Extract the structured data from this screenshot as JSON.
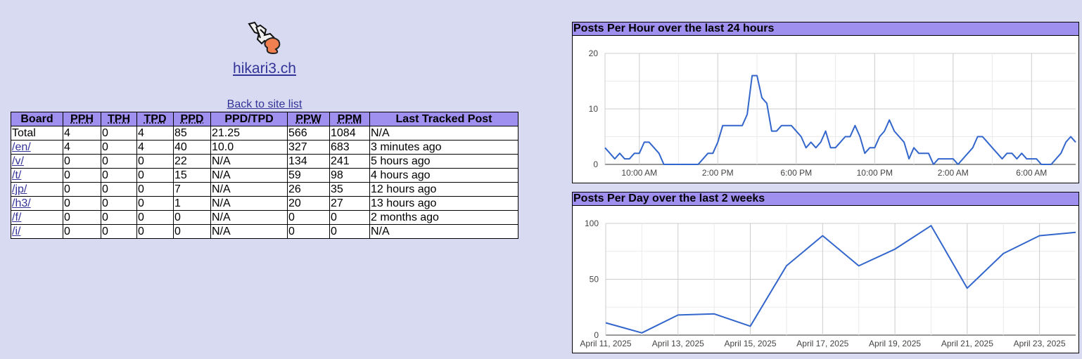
{
  "site": {
    "title": "hikari3.ch",
    "back_link": "Back to site list",
    "logo_icon": "hikari3-logo-icon"
  },
  "table": {
    "headers": [
      "Board",
      "PPH",
      "TPH",
      "TPD",
      "PPD",
      "PPD/TPD",
      "PPW",
      "PPM",
      "Last Tracked Post"
    ],
    "rows": [
      [
        "Total",
        "4",
        "0",
        "4",
        "85",
        "21.25",
        "566",
        "1084",
        "N/A"
      ],
      [
        "/en/",
        "4",
        "0",
        "4",
        "40",
        "10.0",
        "327",
        "683",
        "3 minutes ago"
      ],
      [
        "/v/",
        "0",
        "0",
        "0",
        "22",
        "N/A",
        "134",
        "241",
        "5 hours ago"
      ],
      [
        "/t/",
        "0",
        "0",
        "0",
        "15",
        "N/A",
        "59",
        "98",
        "4 hours ago"
      ],
      [
        "/jp/",
        "0",
        "0",
        "0",
        "7",
        "N/A",
        "26",
        "35",
        "12 hours ago"
      ],
      [
        "/h3/",
        "0",
        "0",
        "0",
        "1",
        "N/A",
        "20",
        "27",
        "13 hours ago"
      ],
      [
        "/f/",
        "0",
        "0",
        "0",
        "0",
        "N/A",
        "0",
        "0",
        "2 months ago"
      ],
      [
        "/i/",
        "0",
        "0",
        "0",
        "0",
        "N/A",
        "0",
        "0",
        "N/A"
      ]
    ]
  },
  "colors": {
    "header_bg": "#9f8fef",
    "page_bg": "#d7daf0",
    "line": "#3366cc",
    "link": "#333399"
  },
  "chart_data": [
    {
      "type": "line",
      "title": "Posts Per Hour over the last 24 hours",
      "ylim": [
        0,
        20
      ],
      "yticks": [
        0,
        10,
        20
      ],
      "x_tick_labels": [
        "10:00 AM",
        "2:00 PM",
        "6:00 PM",
        "10:00 PM",
        "2:00 AM",
        "6:00 AM"
      ],
      "x_range_hours": [
        8.0,
        32.0
      ],
      "x_tick_hours": [
        9.75,
        13.75,
        17.75,
        21.75,
        25.75,
        29.75
      ],
      "x": [
        8.0,
        8.25,
        8.5,
        8.75,
        9.0,
        9.25,
        9.5,
        9.75,
        10.0,
        10.25,
        10.5,
        10.75,
        11.0,
        11.25,
        11.5,
        11.75,
        12.0,
        12.25,
        12.5,
        12.75,
        13.0,
        13.25,
        13.5,
        13.75,
        14.0,
        14.25,
        14.5,
        14.75,
        15.0,
        15.25,
        15.5,
        15.75,
        16.0,
        16.25,
        16.5,
        16.75,
        17.0,
        17.25,
        17.5,
        17.75,
        18.0,
        18.25,
        18.5,
        18.75,
        19.0,
        19.25,
        19.5,
        19.75,
        20.0,
        20.25,
        20.5,
        20.75,
        21.0,
        21.25,
        21.5,
        21.75,
        22.0,
        22.25,
        22.5,
        22.75,
        23.0,
        23.25,
        23.5,
        23.75,
        24.0,
        24.25,
        24.5,
        24.75,
        25.0,
        25.25,
        25.5,
        25.75,
        26.0,
        26.25,
        26.5,
        26.75,
        27.0,
        27.25,
        27.5,
        27.75,
        28.0,
        28.25,
        28.5,
        28.75,
        29.0,
        29.25,
        29.5,
        29.75,
        30.0,
        30.25,
        30.5,
        30.75,
        31.0,
        31.25,
        31.5,
        31.75,
        32.0
      ],
      "values": [
        3,
        2,
        1,
        2,
        1,
        1,
        2,
        2,
        4,
        4,
        3,
        2,
        0,
        0,
        0,
        0,
        0,
        0,
        0,
        0,
        1,
        2,
        2,
        4,
        7,
        7,
        7,
        7,
        7,
        9,
        16,
        16,
        12,
        11,
        6,
        6,
        7,
        7,
        7,
        6,
        5,
        3,
        4,
        3,
        4,
        6,
        3,
        3,
        4,
        5,
        5,
        7,
        5,
        2,
        3,
        3,
        5,
        6,
        8,
        6,
        5,
        4,
        1,
        3,
        2,
        2,
        2,
        0,
        1,
        1,
        1,
        1,
        0,
        1,
        2,
        3,
        5,
        5,
        4,
        3,
        2,
        1,
        2,
        2,
        1,
        2,
        1,
        1,
        1,
        0,
        0,
        0,
        1,
        2,
        4,
        5,
        4
      ]
    },
    {
      "type": "line",
      "title": "Posts Per Day over the last 2 weeks",
      "ylim": [
        0,
        100
      ],
      "yticks": [
        0,
        50,
        100
      ],
      "x_tick_labels": [
        "April 11, 2025",
        "April 13, 2025",
        "April 15, 2025",
        "April 17, 2025",
        "April 19, 2025",
        "April 21, 2025",
        "April 23, 2025"
      ],
      "x_tick_days": [
        11,
        13,
        15,
        17,
        19,
        21,
        23
      ],
      "x": [
        11,
        12,
        13,
        14,
        15,
        16,
        17,
        18,
        19,
        20,
        21,
        22,
        23,
        24
      ],
      "values": [
        11,
        2,
        18,
        19,
        8,
        62,
        89,
        62,
        77,
        98,
        42,
        73,
        89,
        92
      ]
    }
  ]
}
